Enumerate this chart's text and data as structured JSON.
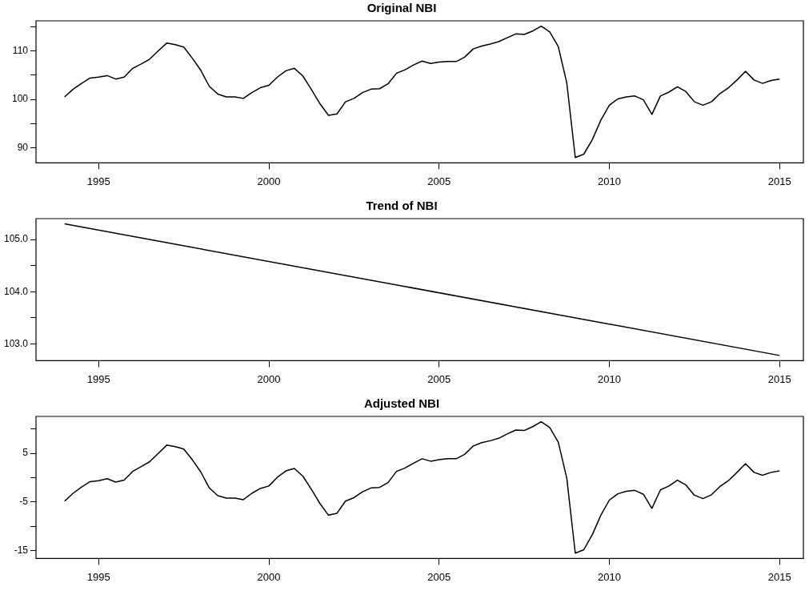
{
  "chart_data": [
    {
      "type": "line",
      "title": "Original NBI",
      "marker": "none",
      "xlim": [
        1993.16,
        2015.7
      ],
      "xticks": [
        1995,
        2000,
        2005,
        2010,
        2015
      ],
      "ylim": [
        86.9,
        116.2
      ],
      "yticks": [
        90,
        {
          "value": 95,
          "label": null
        },
        100,
        {
          "value": 105,
          "label": null
        },
        110,
        {
          "value": 115,
          "label": null
        }
      ],
      "x": [
        1994,
        1994.25,
        1994.5,
        1994.75,
        1995,
        1995.25,
        1995.5,
        1995.75,
        1996,
        1996.25,
        1996.5,
        1996.75,
        1997,
        1997.25,
        1997.5,
        1997.75,
        1998,
        1998.25,
        1998.5,
        1998.75,
        1999,
        1999.25,
        1999.5,
        1999.75,
        2000,
        2000.25,
        2000.5,
        2000.75,
        2001,
        2001.25,
        2001.5,
        2001.75,
        2002,
        2002.25,
        2002.5,
        2002.75,
        2003,
        2003.25,
        2003.5,
        2003.75,
        2004,
        2004.25,
        2004.5,
        2004.75,
        2005,
        2005.25,
        2005.5,
        2005.75,
        2006,
        2006.25,
        2006.5,
        2006.75,
        2007,
        2007.25,
        2007.5,
        2007.75,
        2008,
        2008.25,
        2008.5,
        2008.75,
        2009,
        2009.25,
        2009.5,
        2009.75,
        2010,
        2010.25,
        2010.5,
        2010.75,
        2011,
        2011.25,
        2011.5,
        2011.75,
        2012,
        2012.25,
        2012.5,
        2012.75,
        2013,
        2013.25,
        2013.5,
        2013.75,
        2014,
        2014.25,
        2014.5,
        2014.75,
        2015
      ],
      "series": [
        {
          "color": "#000000",
          "values": [
            100.5,
            102.1,
            103.3,
            104.4,
            104.6,
            104.9,
            104.2,
            104.6,
            106.4,
            107.3,
            108.3,
            110.0,
            111.6,
            111.3,
            110.8,
            108.5,
            106.0,
            102.7,
            101.1,
            100.5,
            100.5,
            100.2,
            101.4,
            102.4,
            102.9,
            104.6,
            105.9,
            106.4,
            104.8,
            102.0,
            99.1,
            96.7,
            97.0,
            99.5,
            100.2,
            101.4,
            102.1,
            102.2,
            103.2,
            105.4,
            106.1,
            107.1,
            107.9,
            107.4,
            107.7,
            107.8,
            107.8,
            108.7,
            110.4,
            111.0,
            111.4,
            111.9,
            112.7,
            113.5,
            113.4,
            114.1,
            115.1,
            113.9,
            110.9,
            103.4,
            88.0,
            88.7,
            91.7,
            95.7,
            98.8,
            100.1,
            100.5,
            100.7,
            99.9,
            96.9,
            100.7,
            101.5,
            102.6,
            101.6,
            99.5,
            98.8,
            99.5,
            101.2,
            102.4,
            104.0,
            105.8,
            104.0,
            103.3,
            103.9,
            104.2
          ]
        }
      ]
    },
    {
      "type": "line",
      "title": "Trend of NBI",
      "marker": "none",
      "xlim": [
        1993.16,
        2015.7
      ],
      "xticks": [
        1995,
        2000,
        2005,
        2010,
        2015
      ],
      "ylim": [
        102.68,
        105.4
      ],
      "yticks": [
        {
          "value": 103,
          "label": "103.0"
        },
        {
          "value": 103.5,
          "label": null
        },
        {
          "value": 104,
          "label": "104.0"
        },
        {
          "value": 104.5,
          "label": null
        },
        {
          "value": 105,
          "label": "105.0"
        }
      ],
      "x": [
        1994,
        2015
      ],
      "series": [
        {
          "color": "#000000",
          "values": [
            105.3,
            102.78
          ]
        }
      ]
    },
    {
      "type": "line",
      "title": "Adjusted NBI",
      "marker": "none",
      "xlim": [
        1993.16,
        2015.7
      ],
      "xticks": [
        1995,
        2000,
        2005,
        2010,
        2015
      ],
      "ylim": [
        -16.6,
        12.6
      ],
      "yticks": [
        -15,
        {
          "value": -10,
          "label": null
        },
        -5,
        {
          "value": 0,
          "label": null
        },
        5,
        {
          "value": 10,
          "label": null
        }
      ],
      "x": [
        1994,
        1994.25,
        1994.5,
        1994.75,
        1995,
        1995.25,
        1995.5,
        1995.75,
        1996,
        1996.25,
        1996.5,
        1996.75,
        1997,
        1997.25,
        1997.5,
        1997.75,
        1998,
        1998.25,
        1998.5,
        1998.75,
        1999,
        1999.25,
        1999.5,
        1999.75,
        2000,
        2000.25,
        2000.5,
        2000.75,
        2001,
        2001.25,
        2001.5,
        2001.75,
        2002,
        2002.25,
        2002.5,
        2002.75,
        2003,
        2003.25,
        2003.5,
        2003.75,
        2004,
        2004.25,
        2004.5,
        2004.75,
        2005,
        2005.25,
        2005.5,
        2005.75,
        2006,
        2006.25,
        2006.5,
        2006.75,
        2007,
        2007.25,
        2007.5,
        2007.75,
        2008,
        2008.25,
        2008.5,
        2008.75,
        2009,
        2009.25,
        2009.5,
        2009.75,
        2010,
        2010.25,
        2010.5,
        2010.75,
        2011,
        2011.25,
        2011.5,
        2011.75,
        2012,
        2012.25,
        2012.5,
        2012.75,
        2013,
        2013.25,
        2013.5,
        2013.75,
        2014,
        2014.25,
        2014.5,
        2014.75,
        2015
      ],
      "series": [
        {
          "color": "#000000",
          "values": [
            -4.8,
            -3.2,
            -1.9,
            -0.8,
            -0.6,
            -0.2,
            -0.9,
            -0.5,
            1.3,
            2.3,
            3.3,
            5.0,
            6.7,
            6.4,
            5.9,
            3.7,
            1.2,
            -2.1,
            -3.7,
            -4.2,
            -4.2,
            -4.5,
            -3.2,
            -2.2,
            -1.7,
            0.1,
            1.4,
            1.9,
            0.3,
            -2.4,
            -5.3,
            -7.7,
            -7.3,
            -4.8,
            -4.1,
            -2.9,
            -2.1,
            -2.0,
            -1.0,
            1.3,
            2.0,
            3.0,
            3.9,
            3.4,
            3.7,
            3.9,
            3.9,
            4.8,
            6.5,
            7.2,
            7.6,
            8.1,
            9.0,
            9.8,
            9.7,
            10.5,
            11.5,
            10.3,
            7.3,
            -0.1,
            -15.5,
            -14.8,
            -11.7,
            -7.7,
            -4.6,
            -3.3,
            -2.8,
            -2.6,
            -3.4,
            -6.3,
            -2.5,
            -1.7,
            -0.5,
            -1.5,
            -3.6,
            -4.3,
            -3.5,
            -1.8,
            -0.6,
            1.1,
            2.9,
            1.1,
            0.5,
            1.1,
            1.4
          ]
        }
      ]
    }
  ]
}
